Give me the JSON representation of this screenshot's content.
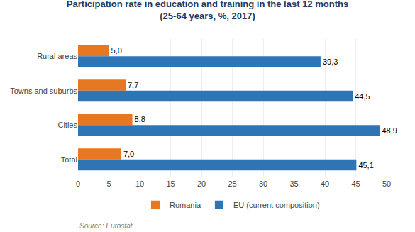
{
  "chart_data": {
    "type": "bar",
    "orientation": "horizontal",
    "title": "Participation rate in education and training in the last 12 months",
    "subtitle": "(25-64 years, %, 2017)",
    "title_color": "#1F3864",
    "categories": [
      "Rural areas",
      "Towns and suburbs",
      "Cities",
      "Total"
    ],
    "series": [
      {
        "name": "Romania",
        "color": "#E87722",
        "values": [
          5.0,
          7.7,
          8.8,
          7.0
        ],
        "value_labels": [
          "5,0",
          "7,7",
          "8,8",
          "7,0"
        ]
      },
      {
        "name": "EU (current composition)",
        "color": "#2E75B6",
        "values": [
          39.3,
          44.5,
          48.9,
          45.1
        ],
        "value_labels": [
          "39,3",
          "44,5",
          "48,9",
          "45,1"
        ]
      }
    ],
    "xlim": [
      0,
      50
    ],
    "xticks": [
      0,
      5,
      10,
      15,
      20,
      25,
      30,
      35,
      40,
      45,
      50
    ],
    "grid": true,
    "legend": "bottom",
    "data_labels": true,
    "annotations": [
      "Source: Eurostat"
    ],
    "background_color": "#FFFFFF",
    "plot_background_color": "#FFFFFF"
  }
}
